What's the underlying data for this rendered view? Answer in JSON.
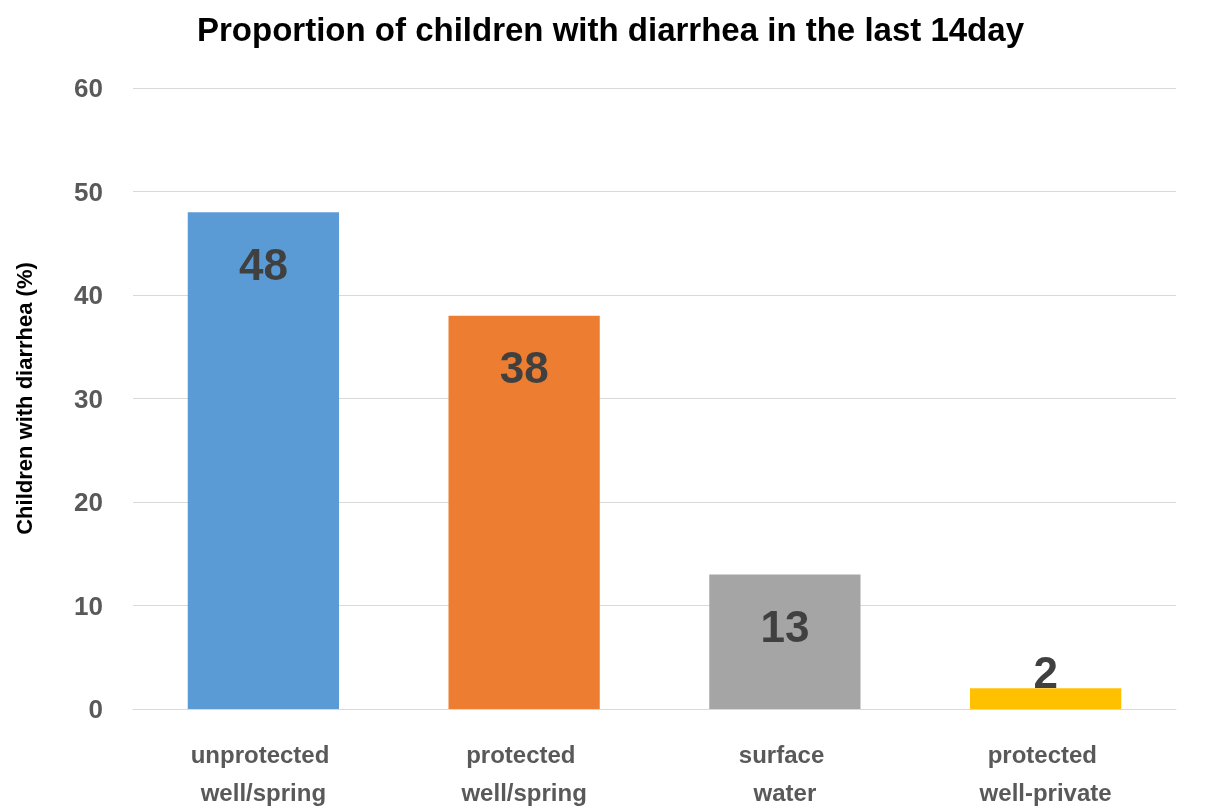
{
  "chart_data": {
    "type": "bar",
    "title": "Proportion of children with diarrhea in the last 14day",
    "ylabel": "Children with diarrhea (%)",
    "categories": [
      "unprotected well/spring",
      "protected well/spring",
      "surface water",
      "protected well-private"
    ],
    "values": [
      48,
      38,
      13,
      2
    ],
    "colors": [
      "#5b9bd5",
      "#ed7d31",
      "#a5a5a5",
      "#ffc000"
    ],
    "ylim": [
      0,
      60
    ],
    "yticks": [
      0,
      10,
      20,
      30,
      40,
      50,
      60
    ],
    "grid": "y",
    "data_labels": true
  }
}
